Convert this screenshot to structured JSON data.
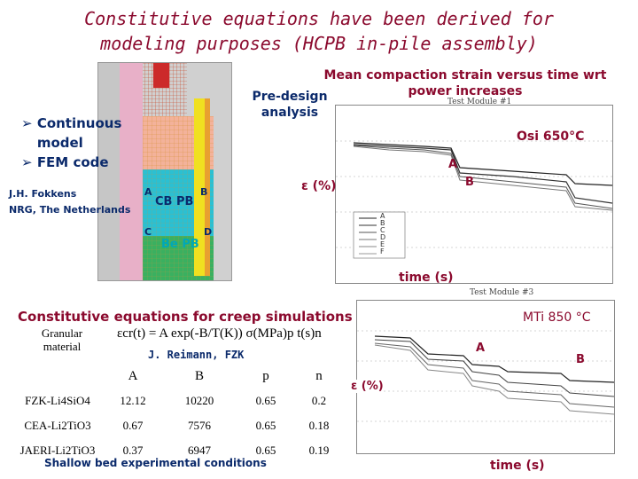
{
  "title": {
    "line1": "Constitutive equations have been derived for",
    "line2": "modeling purposes (HCPB in-pile assembly)"
  },
  "bullets": [
    "Continuous model",
    "FEM code"
  ],
  "affiliation": {
    "name": "J.H. Fokkens",
    "org": "NRG, The Netherlands"
  },
  "fem": {
    "pre_design": "Pre-design analysis",
    "labels": {
      "a": "A",
      "b": "B",
      "c": "C",
      "d": "D",
      "cb": "CB PB",
      "be": "Be PB"
    }
  },
  "top_plot": {
    "heading": "Mean compaction strain versus time wrt power increases",
    "module": "Test Module #1",
    "condition": "Osi 650°C",
    "a": "A",
    "b": "B",
    "ylabel": "ε (%)",
    "xlabel": "time (s)",
    "legend": [
      "A",
      "B",
      "C",
      "D",
      "E",
      "F"
    ]
  },
  "creep": {
    "heading": "Constitutive equations for creep simulations",
    "granular": "Granular material",
    "equation": "εcr(t) = A exp(-B/T(K)) σ(MPa)p t(s)n",
    "author": "J. Reimann, FZK",
    "columns": [
      "A",
      "B",
      "p",
      "n"
    ],
    "rows": [
      {
        "material": "FZK-Li4SiO4",
        "A": "12.12",
        "B": "10220",
        "p": "0.65",
        "n": "0.2"
      },
      {
        "material": "CEA-Li2TiO3",
        "A": "0.67",
        "B": "7576",
        "p": "0.65",
        "n": "0.18"
      },
      {
        "material": "JAERI-Li2TiO3",
        "A": "0.37",
        "B": "6947",
        "p": "0.65",
        "n": "0.19"
      }
    ],
    "footer": "Shallow bed experimental conditions"
  },
  "bottom_plot": {
    "module": "Test Module #3",
    "condition": "MTi 850 °C",
    "a": "A",
    "b": "B",
    "ylabel": "ε (%)",
    "xlabel": "time (s)"
  },
  "colors": {
    "title": "#8b0a2e",
    "navy": "#0b2a6b",
    "cyan": "#00a8b8",
    "mesh_red": "#e0603a",
    "mesh_pink": "#e8b0c8"
  }
}
